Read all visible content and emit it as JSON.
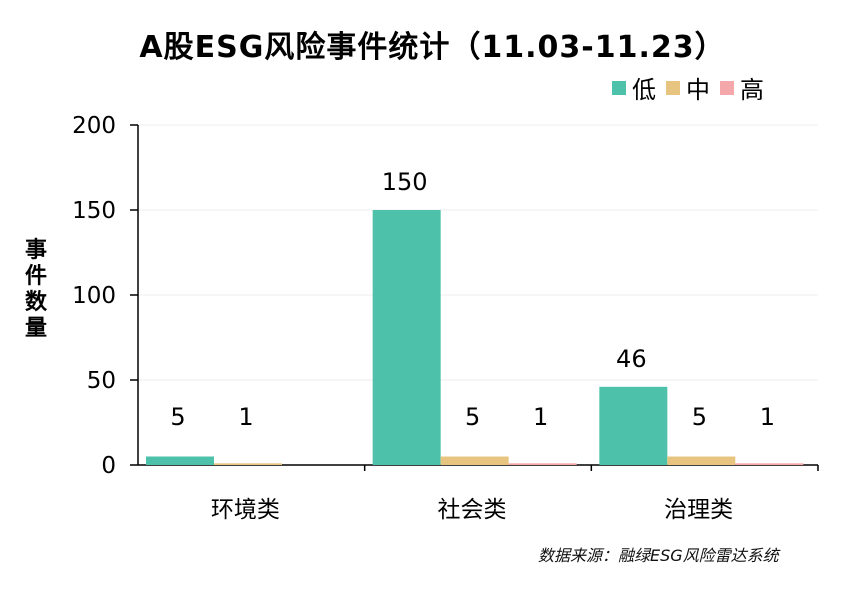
{
  "chart_data": {
    "type": "bar",
    "title": "A股ESG风险事件统计（11.03-11.23）",
    "ylabel": "事件数量",
    "xlabel": "",
    "categories": [
      "环境类",
      "社会类",
      "治理类"
    ],
    "series": [
      {
        "name": "低",
        "values": [
          5,
          150,
          46
        ],
        "color": "#4DC1AA"
      },
      {
        "name": "中",
        "values": [
          1,
          5,
          5
        ],
        "color": "#E8C481"
      },
      {
        "name": "高",
        "values": [
          0,
          1,
          1
        ],
        "color": "#F4A7AA"
      }
    ],
    "data_labels": [
      [
        "5",
        "150",
        "46"
      ],
      [
        "1",
        "5",
        "5"
      ],
      [
        "",
        "1",
        "1"
      ]
    ],
    "ylim": [
      0,
      200
    ],
    "yticks": [
      0,
      50,
      100,
      150,
      200
    ],
    "grid": true,
    "legend_position": "top-right"
  },
  "source_text": "数据来源：融绿ESG风险雷达系统"
}
